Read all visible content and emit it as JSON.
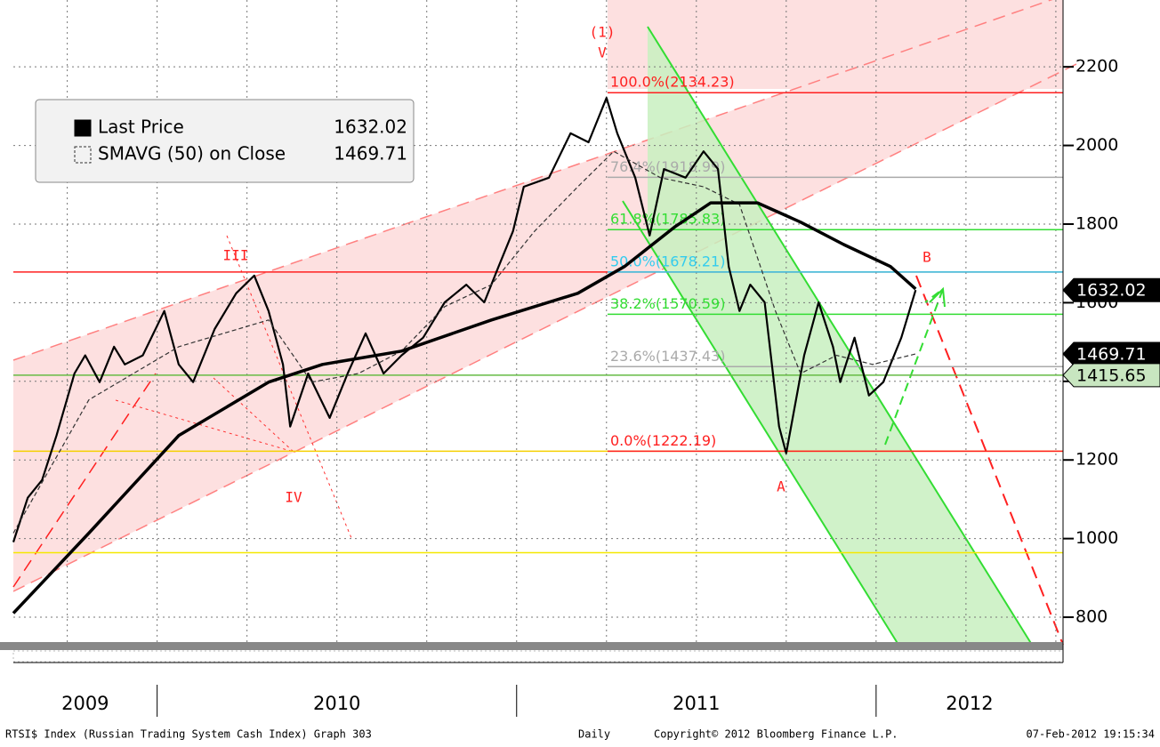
{
  "chart_data": {
    "type": "line",
    "footer": {
      "left": "RTSI$ Index (Russian Trading System Cash Index) Graph 303",
      "period": "Daily",
      "copyright": "Copyright© 2012 Bloomberg Finance L.P.",
      "timestamp": "07-Feb-2012 19:15:34"
    },
    "xlim": [
      2009.6,
      2012.52
    ],
    "xticks": [
      2010,
      2011,
      2012
    ],
    "year_labels": [
      "2009",
      "2010",
      "2011",
      "2012"
    ],
    "xgrid": [
      2009.75,
      2010,
      2010.25,
      2010.5,
      2010.75,
      2011,
      2011.25,
      2011.5,
      2011.75,
      2012,
      2012.25,
      2012.5
    ],
    "ylim": [
      730,
      2370
    ],
    "yticks": [
      800,
      1000,
      1200,
      1400,
      1600,
      1800,
      2000,
      2200
    ],
    "grid": true,
    "series": [
      {
        "name": "Last Price",
        "color": "#000000",
        "last": 1632.02,
        "x": [
          2009.6,
          2009.64,
          2009.68,
          2009.72,
          2009.77,
          2009.8,
          2009.84,
          2009.88,
          2009.91,
          2009.96,
          2010.02,
          2010.06,
          2010.1,
          2010.16,
          2010.22,
          2010.27,
          2010.31,
          2010.35,
          2010.37,
          2010.42,
          2010.48,
          2010.53,
          2010.58,
          2010.63,
          2010.68,
          2010.74,
          2010.8,
          2010.86,
          2010.91,
          2010.95,
          2010.99,
          2011.02,
          2011.09,
          2011.15,
          2011.2,
          2011.25,
          2011.28,
          2011.33,
          2011.37,
          2011.41,
          2011.47,
          2011.52,
          2011.56,
          2011.59,
          2011.62,
          2011.65,
          2011.69,
          2011.73,
          2011.75,
          2011.8,
          2011.84,
          2011.88,
          2011.9,
          2011.94,
          2011.98,
          2012.02,
          2012.07,
          2012.11
        ],
        "values": [
          991,
          1104,
          1149,
          1262,
          1420,
          1466,
          1398,
          1488,
          1443,
          1466,
          1579,
          1443,
          1398,
          1533,
          1624,
          1669,
          1579,
          1443,
          1285,
          1420,
          1307,
          1420,
          1522,
          1420,
          1466,
          1511,
          1601,
          1646,
          1601,
          1692,
          1782,
          1895,
          1918,
          2031,
          2008,
          2121,
          2031,
          1918,
          1771,
          1940,
          1918,
          1985,
          1940,
          1692,
          1579,
          1646,
          1601,
          1285,
          1217,
          1466,
          1601,
          1488,
          1398,
          1511,
          1364,
          1398,
          1511,
          1632.02
        ]
      },
      {
        "name": "SMAVG (50) on Close",
        "color": "#333333",
        "last": 1469.71,
        "x": [
          2009.6,
          2009.81,
          2010.06,
          2010.31,
          2010.43,
          2010.56,
          2010.68,
          2010.8,
          2010.93,
          2011.05,
          2011.17,
          2011.27,
          2011.4,
          2011.52,
          2011.62,
          2011.72,
          2011.79,
          2011.89,
          2011.99,
          2012.11
        ],
        "values": [
          1014,
          1353,
          1488,
          1556,
          1398,
          1420,
          1477,
          1590,
          1646,
          1782,
          1895,
          1985,
          1918,
          1895,
          1850,
          1579,
          1420,
          1466,
          1443,
          1469.71
        ]
      },
      {
        "color": "#000000",
        "x": [
          2009.6,
          2009.81,
          2010.06,
          2010.31,
          2010.46,
          2010.68,
          2010.93,
          2011.17,
          2011.3,
          2011.44,
          2011.54,
          2011.67,
          2011.79,
          2011.91,
          2012.04,
          2012.11
        ],
        "values": [
          810,
          1014,
          1262,
          1398,
          1443,
          1477,
          1556,
          1624,
          1692,
          1793,
          1854,
          1854,
          1805,
          1748,
          1692,
          1635
        ]
      }
    ],
    "hlines": [
      {
        "value": 1678.21,
        "color": "#ff2020"
      },
      {
        "value": 1415.65,
        "color": "#66bb44",
        "tag_color": "#c8e6c0"
      },
      {
        "value": 1222.19,
        "color": "#f5d000"
      },
      {
        "value": 964,
        "color": "#f5e800"
      }
    ],
    "fib_levels": [
      {
        "label": "100.0%(2134.23)",
        "value": 2134.23,
        "color": "#ff2020"
      },
      {
        "label": "76.4%(1918.99)",
        "value": 1918.99,
        "color": "#aaaaaa"
      },
      {
        "label": "61.8%(1785.83)",
        "value": 1785.83,
        "color": "#33dd33"
      },
      {
        "label": "50.0%(1678.21)",
        "value": 1678.21,
        "color": "#33ccee"
      },
      {
        "label": "38.2%(1570.59)",
        "value": 1570.59,
        "color": "#33dd33"
      },
      {
        "label": "23.6%(1437.43)",
        "value": 1437.43,
        "color": "#aaaaaa"
      },
      {
        "label": "0.0%(1222.19)",
        "value": 1222.19,
        "color": "#ff2020"
      }
    ],
    "annotations": [
      "(1)",
      "V",
      "III",
      "IV",
      "A",
      "B"
    ]
  }
}
